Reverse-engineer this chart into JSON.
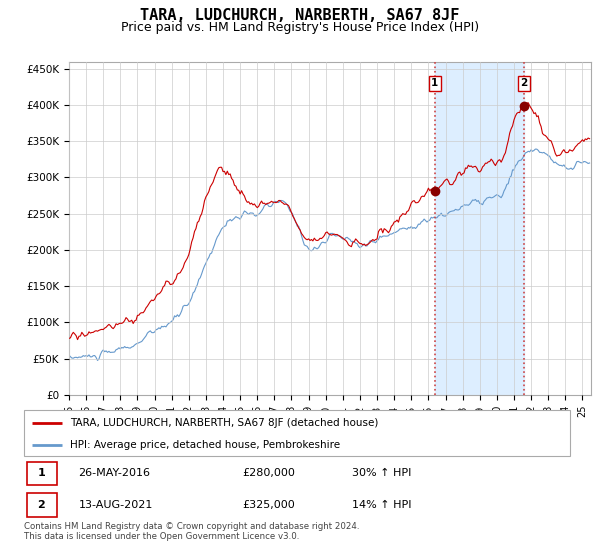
{
  "title": "TARA, LUDCHURCH, NARBERTH, SA67 8JF",
  "subtitle": "Price paid vs. HM Land Registry's House Price Index (HPI)",
  "title_fontsize": 11,
  "subtitle_fontsize": 9,
  "ylabel_ticks": [
    "£0",
    "£50K",
    "£100K",
    "£150K",
    "£200K",
    "£250K",
    "£300K",
    "£350K",
    "£400K",
    "£450K"
  ],
  "ytick_values": [
    0,
    50000,
    100000,
    150000,
    200000,
    250000,
    300000,
    350000,
    400000,
    450000
  ],
  "ylim": [
    0,
    460000
  ],
  "xlim_start": 1995.0,
  "xlim_end": 2025.5,
  "background_color": "#ffffff",
  "chart_bg_color": "#ffffff",
  "grid_color": "#cccccc",
  "red_color": "#cc0000",
  "blue_color": "#6699cc",
  "shade_color": "#ddeeff",
  "vline_color": "#cc4444",
  "vline_style": "--",
  "annotation1": {
    "x": 2016.38,
    "label": "1",
    "price": 280000
  },
  "annotation2": {
    "x": 2021.58,
    "label": "2",
    "price": 325000
  },
  "legend_label_red": "TARA, LUDCHURCH, NARBERTH, SA67 8JF (detached house)",
  "legend_label_blue": "HPI: Average price, detached house, Pembrokeshire",
  "table_rows": [
    {
      "num": "1",
      "date": "26-MAY-2016",
      "price": "£280,000",
      "change": "30% ↑ HPI"
    },
    {
      "num": "2",
      "date": "13-AUG-2021",
      "price": "£325,000",
      "change": "14% ↑ HPI"
    }
  ],
  "footer": "Contains HM Land Registry data © Crown copyright and database right 2024.\nThis data is licensed under the Open Government Licence v3.0."
}
